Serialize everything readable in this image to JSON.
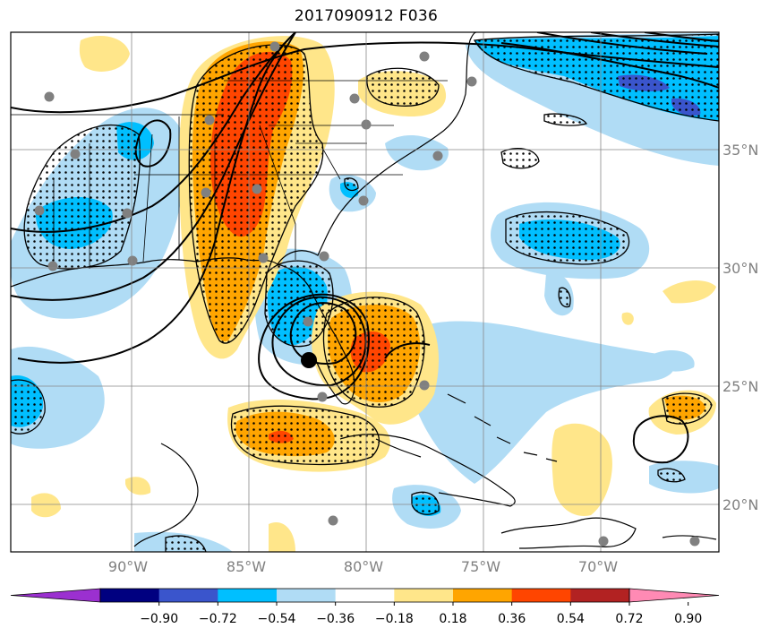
{
  "title": "2017090912 F036",
  "lon_labels": [
    "90°W",
    "85°W",
    "80°W",
    "75°W",
    "70°W"
  ],
  "lat_labels": [
    "35°N",
    "30°N",
    "25°N",
    "20°N"
  ],
  "colorbar": {
    "tick_labels": [
      "−0.90",
      "−0.72",
      "−0.54",
      "−0.36",
      "−0.18",
      "0.18",
      "0.36",
      "0.54",
      "0.72",
      "0.90"
    ],
    "colors": [
      "#9b30d0",
      "#000080",
      "#3a55cc",
      "#00bfff",
      "#b0dcf5",
      "#ffffff",
      "#ffe68a",
      "#ffa500",
      "#ff4500",
      "#b22222",
      "#ff8ab4"
    ]
  },
  "storm_marker_color": "#000000",
  "station_color": "#808080"
}
